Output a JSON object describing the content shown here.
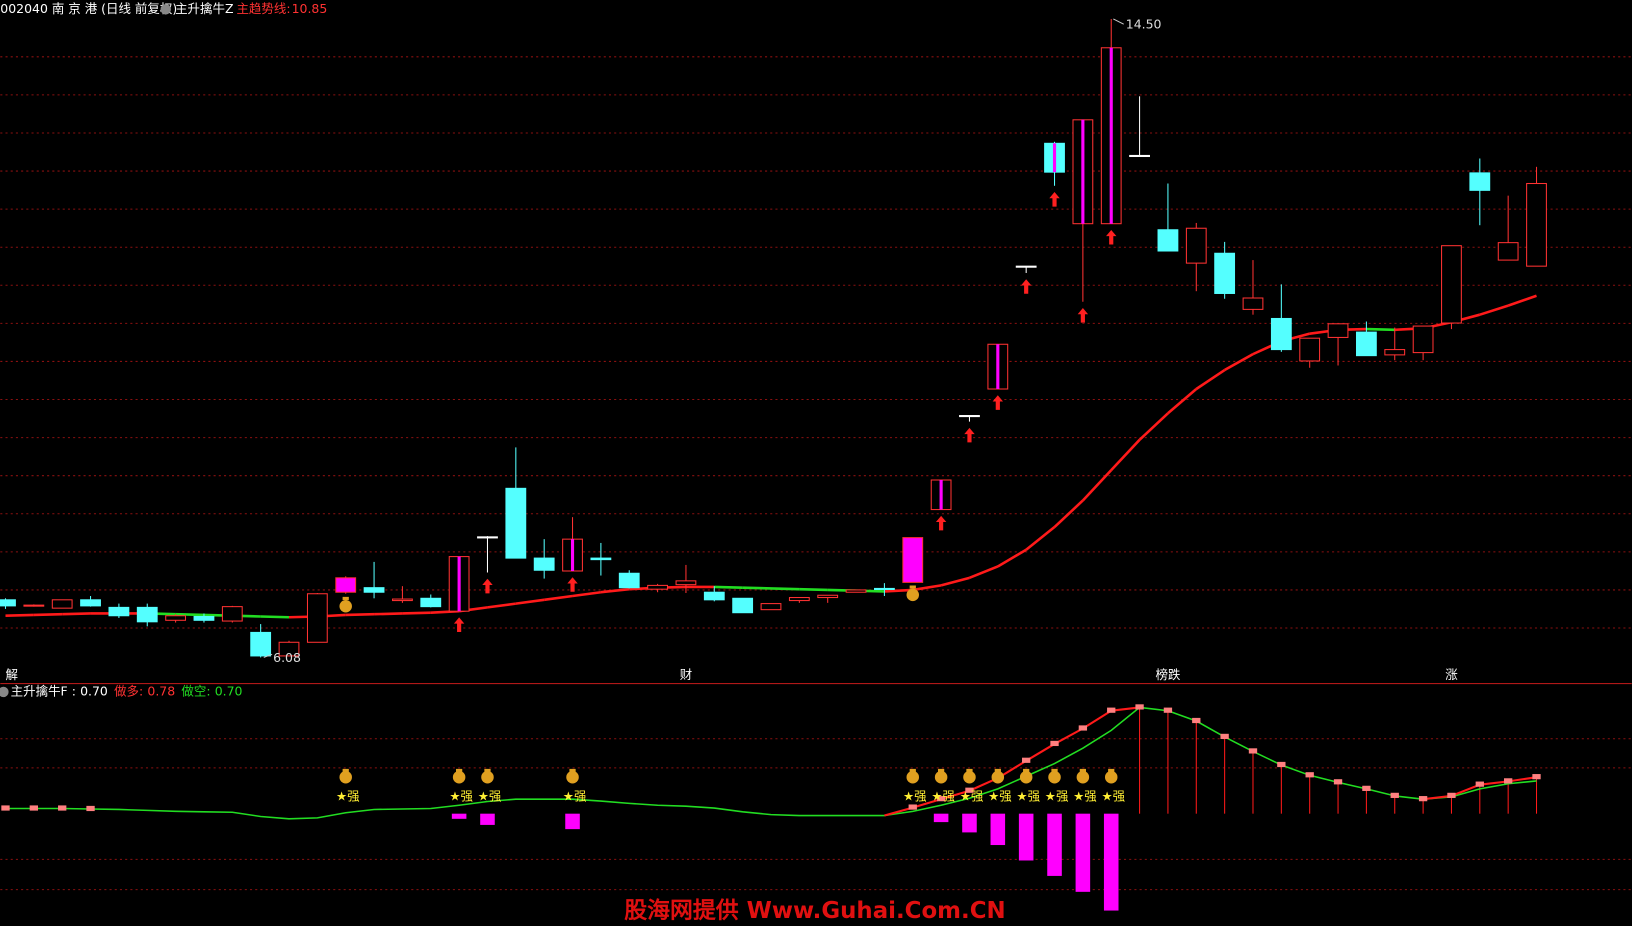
{
  "chart_data": [
    {
      "type": "candlestick",
      "title": "002040 南 京 港 (日线 前复权)",
      "indicator": "主升擒牛Z",
      "ma_label": "主趋势线:",
      "open": [
        6.84,
        6.76,
        6.73,
        6.84,
        6.74,
        6.74,
        6.57,
        6.62,
        6.56,
        6.41,
        6.1,
        6.28,
        6.94,
        7.0,
        6.83,
        6.86,
        6.69,
        7.67,
        8.31,
        7.39,
        7.22,
        7.39,
        7.19,
        6.98,
        7.04,
        6.94,
        6.86,
        6.71,
        6.83,
        6.87,
        6.94,
        6.99,
        7.07,
        8.03,
        9.27,
        9.62,
        11.24,
        12.86,
        11.8,
        11.8,
        12.7,
        11.72,
        11.28,
        11.41,
        10.67,
        10.55,
        9.99,
        10.3,
        10.37,
        10.07,
        10.1,
        10.49,
        12.47,
        11.32,
        11.24
      ],
      "high": [
        6.86,
        6.78,
        6.84,
        6.89,
        6.79,
        6.79,
        6.65,
        6.66,
        6.76,
        6.52,
        6.3,
        6.93,
        7.15,
        7.34,
        7.02,
        6.91,
        7.41,
        7.68,
        8.85,
        7.64,
        7.93,
        7.59,
        7.23,
        7.05,
        7.3,
        7.02,
        6.86,
        6.79,
        6.87,
        6.9,
        6.97,
        7.06,
        7.66,
        8.42,
        9.27,
        10.21,
        11.24,
        12.88,
        13.17,
        14.5,
        13.48,
        12.33,
        11.81,
        11.56,
        11.32,
        11.0,
        10.29,
        10.48,
        10.51,
        10.43,
        10.45,
        11.51,
        12.66,
        12.17,
        12.55
      ],
      "low": [
        6.72,
        6.75,
        6.73,
        6.75,
        6.6,
        6.49,
        6.54,
        6.54,
        6.54,
        6.08,
        6.1,
        6.28,
        6.92,
        6.86,
        6.8,
        6.74,
        6.69,
        7.2,
        7.39,
        7.12,
        7.22,
        7.16,
        6.99,
        6.94,
        6.93,
        6.82,
        6.67,
        6.71,
        6.8,
        6.8,
        6.94,
        6.89,
        7.07,
        8.03,
        9.19,
        9.62,
        11.15,
        12.3,
        10.77,
        11.8,
        12.7,
        11.44,
        10.91,
        10.81,
        10.6,
        10.11,
        9.9,
        9.93,
        10.06,
        10.0,
        10.0,
        10.41,
        11.78,
        11.32,
        11.24
      ],
      "close": [
        6.76,
        6.77,
        6.84,
        6.76,
        6.63,
        6.55,
        6.63,
        6.57,
        6.75,
        6.1,
        6.28,
        6.92,
        7.13,
        6.94,
        6.85,
        6.75,
        7.41,
        7.67,
        7.39,
        7.23,
        7.64,
        7.37,
        7.0,
        7.03,
        7.09,
        6.84,
        6.67,
        6.79,
        6.87,
        6.9,
        6.97,
        6.98,
        7.66,
        8.42,
        9.27,
        10.21,
        11.24,
        12.48,
        13.17,
        14.12,
        12.7,
        11.44,
        11.74,
        10.88,
        10.82,
        10.14,
        10.29,
        10.48,
        10.06,
        10.14,
        10.45,
        11.51,
        12.24,
        11.55,
        12.33
      ],
      "ma": [
        6.63,
        6.64,
        6.65,
        6.66,
        6.66,
        6.66,
        6.65,
        6.64,
        6.63,
        6.62,
        6.61,
        6.62,
        6.64,
        6.65,
        6.66,
        6.67,
        6.69,
        6.74,
        6.79,
        6.84,
        6.89,
        6.94,
        6.98,
        7.0,
        7.01,
        7.01,
        7.0,
        6.99,
        6.98,
        6.97,
        6.96,
        6.95,
        6.97,
        7.03,
        7.13,
        7.28,
        7.5,
        7.8,
        8.15,
        8.55,
        8.95,
        9.3,
        9.62,
        9.87,
        10.08,
        10.25,
        10.35,
        10.4,
        10.41,
        10.4,
        10.42,
        10.5,
        10.6,
        10.72,
        10.85
      ],
      "ylim": [
        5.9,
        14.75
      ],
      "highlight": [
        12,
        16,
        20,
        32,
        33,
        35,
        37,
        38,
        39
      ],
      "bag": [
        12,
        32
      ],
      "arrows": [
        16,
        17,
        20,
        33,
        34,
        35,
        36,
        37,
        38,
        39
      ],
      "high_label": {
        "index": 39,
        "text": "14.50"
      },
      "low_label": {
        "index": 9,
        "text": "6.08"
      },
      "events": [
        {
          "index": 0,
          "label": "解"
        },
        {
          "index": 24,
          "label": "财"
        },
        {
          "index": 41,
          "label": "榜跌"
        },
        {
          "index": 51,
          "label": "涨"
        }
      ],
      "up_color": "#ff3232",
      "down_color": "#54ffff",
      "doji_color": "#ffffff",
      "highlight_color": "#ff00ff",
      "ma_up_color": "#ff1a1a",
      "ma_down_color": "#22dd22"
    },
    {
      "type": "indicator",
      "header": [
        {
          "label": "主升擒牛F :",
          "value": "0.70",
          "color": "#ffffff"
        },
        {
          "label": "做多:",
          "value": "0.78",
          "color": "#ff3232"
        },
        {
          "label": "做空:",
          "value": "0.70",
          "color": "#22dd22"
        }
      ],
      "long": [
        0.11,
        0.11,
        0.11,
        0.1,
        0.09,
        0.07,
        0.05,
        0.04,
        0.03,
        -0.06,
        -0.11,
        -0.09,
        0.02,
        0.09,
        0.1,
        0.11,
        0.18,
        0.26,
        0.31,
        0.31,
        0.31,
        0.27,
        0.22,
        0.18,
        0.16,
        0.12,
        0.04,
        -0.02,
        -0.04,
        -0.04,
        -0.04,
        -0.04,
        0.13,
        0.31,
        0.49,
        0.76,
        1.13,
        1.49,
        1.82,
        2.2,
        2.27,
        2.2,
        1.98,
        1.64,
        1.33,
        1.04,
        0.82,
        0.67,
        0.53,
        0.38,
        0.31,
        0.38,
        0.62,
        0.69,
        0.78
      ],
      "short": [
        0.11,
        0.11,
        0.11,
        0.1,
        0.09,
        0.07,
        0.05,
        0.04,
        0.03,
        -0.06,
        -0.11,
        -0.09,
        0.02,
        0.09,
        0.1,
        0.11,
        0.18,
        0.26,
        0.31,
        0.31,
        0.31,
        0.27,
        0.22,
        0.18,
        0.16,
        0.12,
        0.04,
        -0.02,
        -0.04,
        -0.04,
        -0.04,
        -0.04,
        0.05,
        0.18,
        0.33,
        0.53,
        0.8,
        1.07,
        1.4,
        1.78,
        2.27,
        2.2,
        1.98,
        1.64,
        1.33,
        1.04,
        0.82,
        0.67,
        0.53,
        0.38,
        0.31,
        0.36,
        0.53,
        0.64,
        0.7
      ],
      "bars": [
        null,
        null,
        null,
        null,
        null,
        null,
        null,
        null,
        null,
        null,
        null,
        null,
        null,
        null,
        null,
        null,
        -0.11,
        -0.24,
        null,
        null,
        -0.33,
        null,
        null,
        null,
        null,
        null,
        null,
        null,
        null,
        null,
        null,
        null,
        null,
        -0.18,
        -0.4,
        -0.67,
        -1.0,
        -1.33,
        -1.67,
        -2.07,
        null,
        null,
        null,
        null,
        null,
        null,
        null,
        null,
        null,
        null,
        null,
        null,
        null,
        null,
        null
      ],
      "signals": [
        12,
        16,
        17,
        20,
        32,
        33,
        34,
        35,
        36,
        37,
        38,
        39
      ],
      "signal_label": "★强",
      "ylim": [
        -2.4,
        2.78
      ],
      "long_color": "#ff1a1a",
      "short_color": "#22dd22",
      "bar_color": "#ff00ff"
    }
  ],
  "watermark": "股海网提供 Www.Guhai.Com.CN"
}
